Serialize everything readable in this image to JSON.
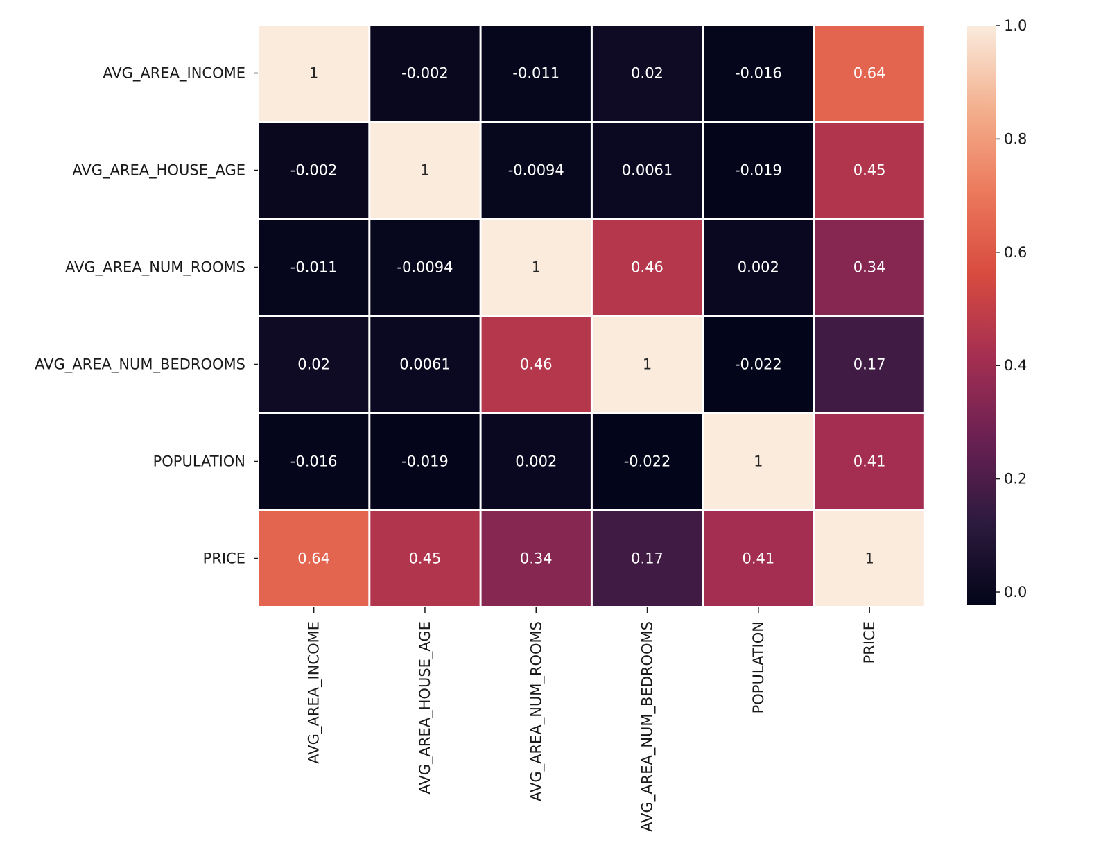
{
  "chart_data": {
    "type": "heatmap",
    "title": "",
    "xlabel": "",
    "ylabel": "",
    "rows": [
      "AVG_AREA_INCOME",
      "AVG_AREA_HOUSE_AGE",
      "AVG_AREA_NUM_ROOMS",
      "AVG_AREA_NUM_BEDROOMS",
      "POPULATION",
      "PRICE"
    ],
    "columns": [
      "AVG_AREA_INCOME",
      "AVG_AREA_HOUSE_AGE",
      "AVG_AREA_NUM_ROOMS",
      "AVG_AREA_NUM_BEDROOMS",
      "POPULATION",
      "PRICE"
    ],
    "values": [
      [
        1,
        -0.002,
        -0.011,
        0.02,
        -0.016,
        0.64
      ],
      [
        -0.002,
        1,
        -0.0094,
        0.0061,
        -0.019,
        0.45
      ],
      [
        -0.011,
        -0.0094,
        1,
        0.46,
        0.002,
        0.34
      ],
      [
        0.02,
        0.0061,
        0.46,
        1,
        -0.022,
        0.17
      ],
      [
        -0.016,
        -0.019,
        0.002,
        -0.022,
        1,
        0.41
      ],
      [
        0.64,
        0.45,
        0.34,
        0.17,
        0.41,
        1
      ]
    ],
    "annotations": [
      [
        "1",
        "-0.002",
        "-0.011",
        "0.02",
        "-0.016",
        "0.64"
      ],
      [
        "-0.002",
        "1",
        "-0.0094",
        "0.0061",
        "-0.019",
        "0.45"
      ],
      [
        "-0.011",
        "-0.0094",
        "1",
        "0.46",
        "0.002",
        "0.34"
      ],
      [
        "0.02",
        "0.0061",
        "0.46",
        "1",
        "-0.022",
        "0.17"
      ],
      [
        "-0.016",
        "-0.019",
        "0.002",
        "-0.022",
        "1",
        "0.41"
      ],
      [
        "0.64",
        "0.45",
        "0.34",
        "0.17",
        "0.41",
        "1"
      ]
    ],
    "colorbar": {
      "range": [
        -0.022,
        1.0
      ],
      "ticks": [
        0.0,
        0.2,
        0.4,
        0.6,
        0.8,
        1.0
      ],
      "tick_labels": [
        "0.0",
        "0.2",
        "0.4",
        "0.6",
        "0.8",
        "1.0"
      ]
    },
    "colormap": "rocket",
    "colormap_stops": [
      "#03051a",
      "#2d1a3e",
      "#6a2053",
      "#a52f51",
      "#d84b40",
      "#ec7a5c",
      "#f3b08e",
      "#faebdd"
    ]
  }
}
